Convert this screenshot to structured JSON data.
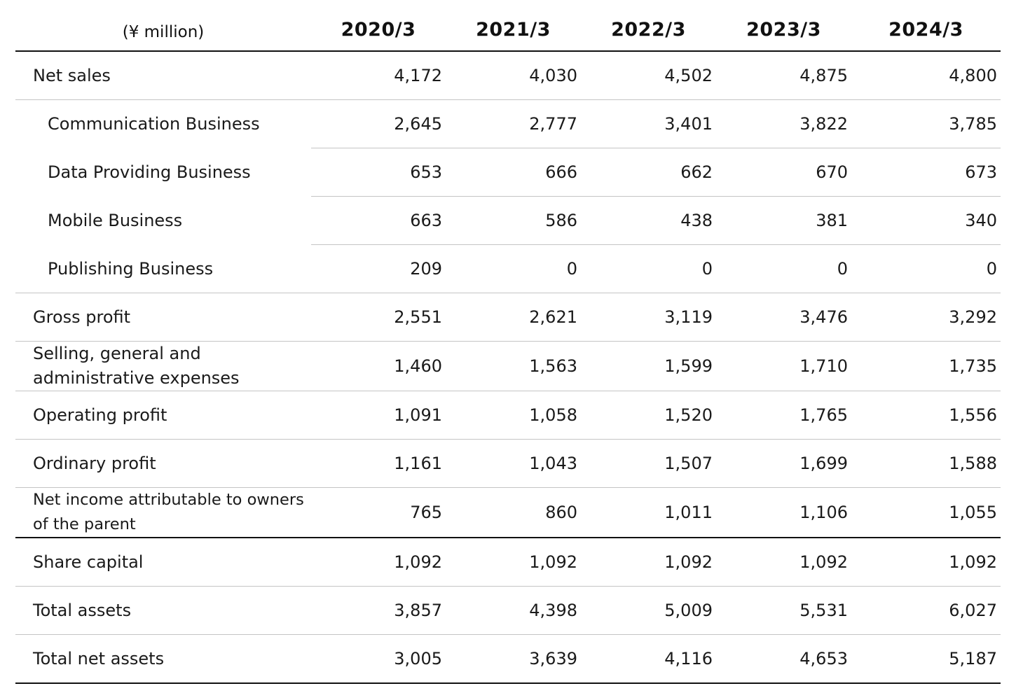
{
  "table": {
    "unit_label": "(¥ million)",
    "years": [
      "2020/3",
      "2021/3",
      "2022/3",
      "2023/3",
      "2024/3"
    ],
    "rows": [
      {
        "label": "Net sales",
        "values": [
          "4,172",
          "4,030",
          "4,502",
          "4,875",
          "4,800"
        ]
      },
      {
        "label": "Communication Business",
        "values": [
          "2,645",
          "2,777",
          "3,401",
          "3,822",
          "3,785"
        ]
      },
      {
        "label": "Data Providing Business",
        "values": [
          "653",
          "666",
          "662",
          "670",
          "673"
        ]
      },
      {
        "label": "Mobile Business",
        "values": [
          "663",
          "586",
          "438",
          "381",
          "340"
        ]
      },
      {
        "label": "Publishing Business",
        "values": [
          "209",
          "0",
          "0",
          "0",
          "0"
        ]
      },
      {
        "label": "Gross profit",
        "values": [
          "2,551",
          "2,621",
          "3,119",
          "3,476",
          "3,292"
        ]
      },
      {
        "label": "Selling, general and administrative expenses",
        "values": [
          "1,460",
          "1,563",
          "1,599",
          "1,710",
          "1,735"
        ]
      },
      {
        "label": "Operating profit",
        "values": [
          "1,091",
          "1,058",
          "1,520",
          "1,765",
          "1,556"
        ]
      },
      {
        "label": "Ordinary profit",
        "values": [
          "1,161",
          "1,043",
          "1,507",
          "1,699",
          "1,588"
        ]
      },
      {
        "label": "Net income attributable to owners of the parent",
        "values": [
          "765",
          "860",
          "1,011",
          "1,106",
          "1,055"
        ]
      },
      {
        "label": "Share capital",
        "values": [
          "1,092",
          "1,092",
          "1,092",
          "1,092",
          "1,092"
        ]
      },
      {
        "label": "Total assets",
        "values": [
          "3,857",
          "4,398",
          "5,009",
          "5,531",
          "6,027"
        ]
      },
      {
        "label": "Total net assets",
        "values": [
          "3,005",
          "3,639",
          "4,116",
          "4,653",
          "5,187"
        ]
      }
    ]
  }
}
